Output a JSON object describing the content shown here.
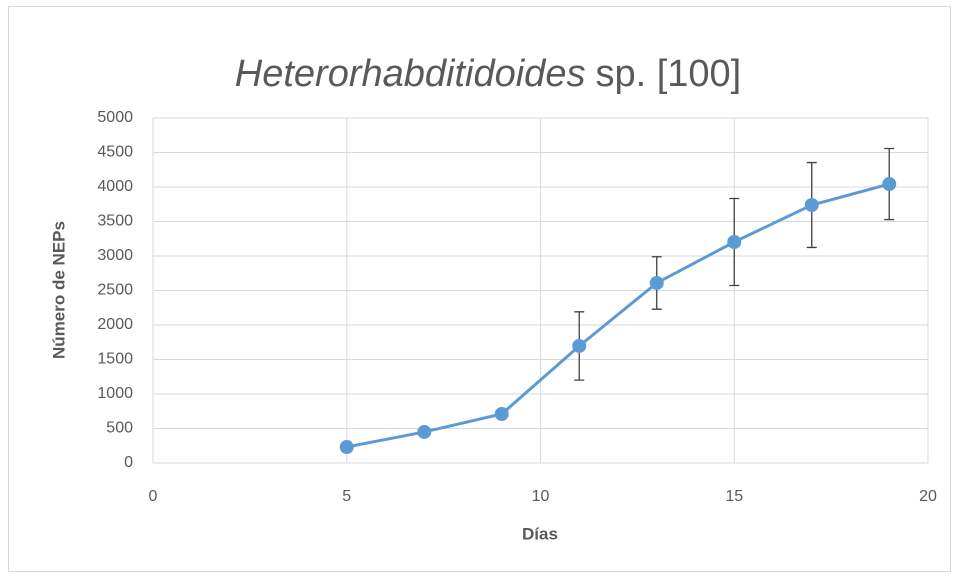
{
  "chart_data": {
    "type": "line",
    "title": [
      "Heterorhabditidoides",
      "sp. [100]"
    ],
    "xlabel": "Días",
    "ylabel": "Número de NEPs",
    "x": [
      5,
      7,
      9,
      11,
      13,
      15,
      17,
      19
    ],
    "series": [
      {
        "color": "#5b9bd5",
        "values": [
          232,
          450,
          710,
          1696,
          2609,
          3203,
          3739,
          4043
        ],
        "errors": [
          10,
          20,
          30,
          495,
          380,
          630,
          615,
          515
        ]
      }
    ],
    "error_color": "#404040",
    "xlim": [
      0,
      20
    ],
    "xticks": [
      0,
      5,
      10,
      15,
      20
    ],
    "ylim": [
      0,
      5000
    ],
    "yticks": [
      0,
      500,
      1000,
      1500,
      2000,
      2500,
      3000,
      3500,
      4000,
      4500,
      5000
    ],
    "grid": true
  }
}
